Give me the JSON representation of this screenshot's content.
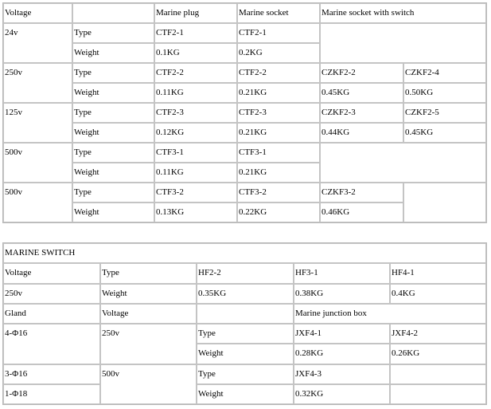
{
  "plugs": {
    "header": [
      "Voltage",
      "",
      "Marine plug",
      "Marine socket",
      "Marine socket with switch"
    ],
    "groups": [
      {
        "voltage": "24v",
        "type": [
          "Type",
          "CTF2-1",
          "CTF2-1"
        ],
        "weight": [
          "Weight",
          "0.1KG",
          "0.2KG"
        ]
      },
      {
        "voltage": "250v",
        "type": [
          "Type",
          "CTF2-2",
          "CTF2-2",
          "CZKF2-2",
          "CZKF2-4"
        ],
        "weight": [
          "Weight",
          "0.11KG",
          "0.21KG",
          "0.45KG",
          "0.50KG"
        ]
      },
      {
        "voltage": "125v",
        "type": [
          "Type",
          "CTF2-3",
          "CTF2-3",
          "CZKF2-3",
          "CZKF2-5"
        ],
        "weight": [
          "Weight",
          "0.12KG",
          "0.21KG",
          "0.44KG",
          "0.45KG"
        ]
      },
      {
        "voltage": "500v",
        "type": [
          "Type",
          "CTF3-1",
          "CTF3-1"
        ],
        "weight": [
          "Weight",
          "0.11KG",
          "0.21KG"
        ]
      },
      {
        "voltage": "500v",
        "type": [
          "Type",
          "CTF3-2",
          "CTF3-2",
          "CZKF3-2"
        ],
        "weight": [
          "Weight",
          "0.13KG",
          "0.22KG",
          "0.46KG"
        ]
      }
    ]
  },
  "switch": {
    "title": "MARINE SWITCH",
    "type_row": [
      "Voltage",
      "Type",
      "HF2-2",
      "HF3-1",
      "HF4-1"
    ],
    "weight_row": [
      "250v",
      "Weight",
      "0.35KG",
      "0.38KG",
      "0.4KG"
    ],
    "junction_header": [
      "Gland",
      "Voltage",
      "",
      "Marine junction box"
    ],
    "j1": {
      "gland": "4-Φ16",
      "voltage": "250v",
      "type": [
        "Type",
        "JXF4-1",
        "JXF4-2"
      ],
      "weight": [
        "Weight",
        "0.28KG",
        "0.26KG"
      ]
    },
    "j2": {
      "gland_a": "3-Φ16",
      "gland_b": "1-Φ18",
      "voltage": "500v",
      "type": [
        "Type",
        "JXF4-3"
      ],
      "weight": [
        "Weight",
        "0.32KG"
      ]
    }
  }
}
